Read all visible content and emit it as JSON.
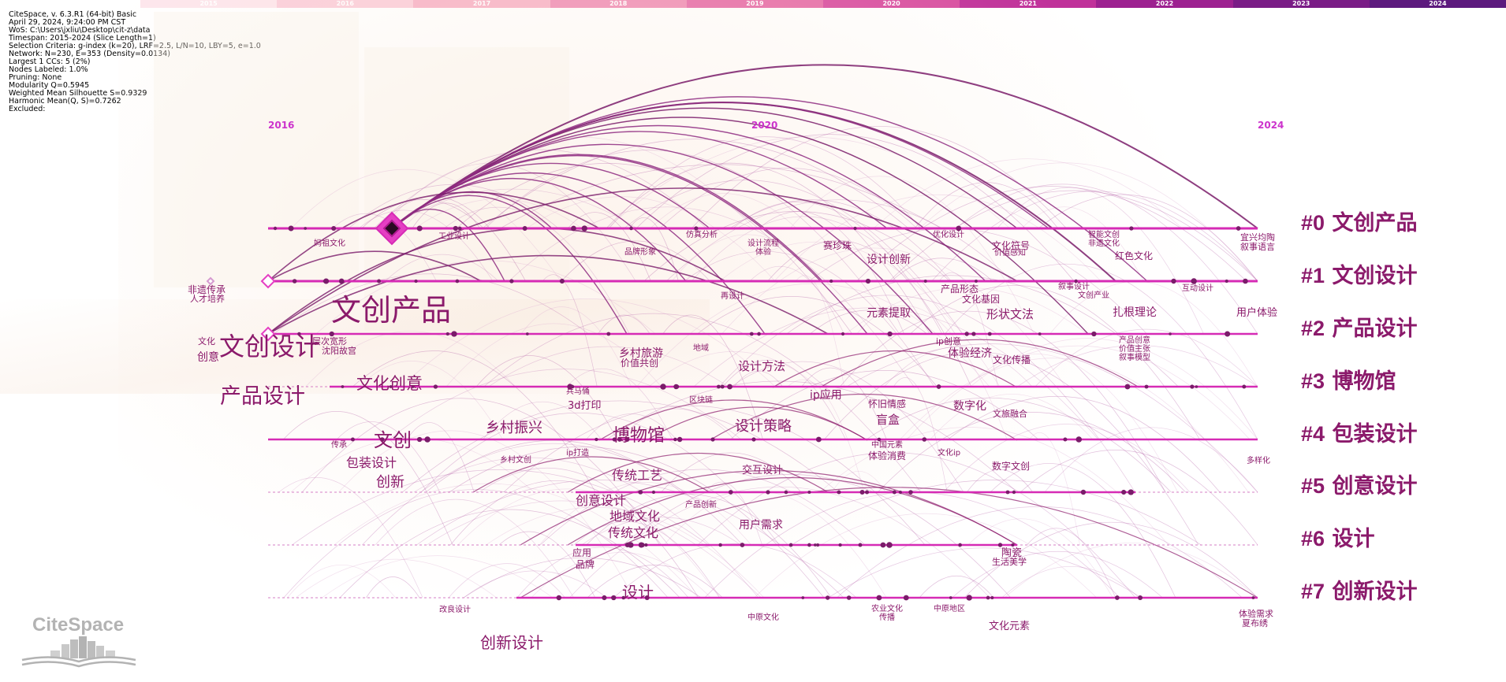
{
  "timebar": {
    "years": [
      "2015",
      "2016",
      "2017",
      "2018",
      "2019",
      "2020",
      "2021",
      "2022",
      "2023",
      "2024"
    ],
    "colors": [
      "#fde6ec",
      "#fbcfdb",
      "#f8b4c8",
      "#ef8fb6",
      "#e66da8",
      "#d84da0",
      "#c0319a",
      "#9d2190",
      "#7a1c86",
      "#5d1a7e"
    ]
  },
  "info": [
    "CiteSpace, v. 6.3.R1 (64-bit) Basic",
    "April 29, 2024, 9:24:00 PM CST",
    "WoS: C:\\Users\\jxliu\\Desktop\\cit-z\\data",
    "Timespan: 2015-2024 (Slice Length=1)",
    "Selection Criteria: g-index (k=20), LRF=2.5, L/N=10, LBY=5, e=1.0",
    "Network: N=230, E=353 (Density=0.0134)",
    "Largest 1 CCs: 5 (2%)",
    "Nodes Labeled: 1.0%",
    "Pruning: None",
    "Modularity Q=0.5945",
    "Weighted Mean Silhouette S=0.9329",
    "Harmonic Mean(Q, S)=0.7262",
    "Excluded:"
  ],
  "year_labels": [
    "2016",
    "2020",
    "2024"
  ],
  "clusters": [
    {
      "num": "#0",
      "name": "文创产品",
      "color": "#8b1a6b"
    },
    {
      "num": "#1",
      "name": "文创设计",
      "color": "#8b1a6b"
    },
    {
      "num": "#2",
      "name": "产品设计",
      "color": "#8b1a6b"
    },
    {
      "num": "#3",
      "name": "博物馆",
      "color": "#8b1a6b"
    },
    {
      "num": "#4",
      "name": "包装设计",
      "color": "#8b1a6b"
    },
    {
      "num": "#5",
      "name": "创意设计",
      "color": "#8b1a6b"
    },
    {
      "num": "#6",
      "name": "设计",
      "color": "#8b1a6b"
    },
    {
      "num": "#7",
      "name": "创新设计",
      "color": "#8b1a6b"
    }
  ],
  "keywords": [
    {
      "t": "文创产品",
      "sz": 38
    },
    {
      "t": "文创设计",
      "sz": 32
    },
    {
      "t": "产品设计",
      "sz": 27
    },
    {
      "t": "文化创意",
      "sz": 21
    },
    {
      "t": "文创",
      "sz": 24
    },
    {
      "t": "创新设计",
      "sz": 20
    },
    {
      "t": "博物馆",
      "sz": 22
    },
    {
      "t": "乡村振兴",
      "sz": 18
    },
    {
      "t": "设计策略",
      "sz": 18
    },
    {
      "t": "传统工艺",
      "sz": 16
    },
    {
      "t": "创意设计",
      "sz": 16
    },
    {
      "t": "地域文化",
      "sz": 16
    },
    {
      "t": "传统文化",
      "sz": 16
    },
    {
      "t": "设计",
      "sz": 20
    },
    {
      "t": "创新",
      "sz": 18
    },
    {
      "t": "包装设计",
      "sz": 16
    },
    {
      "t": "乡村旅游",
      "sz": 14
    },
    {
      "t": "价值共创",
      "sz": 12
    },
    {
      "t": "设计方法",
      "sz": 15
    },
    {
      "t": "ip应用",
      "sz": 14
    },
    {
      "t": "怀旧情感",
      "sz": 12
    },
    {
      "t": "盲盒",
      "sz": 15
    },
    {
      "t": "数字化",
      "sz": 14
    },
    {
      "t": "文旅融合",
      "sz": 11
    },
    {
      "t": "交互设计",
      "sz": 13
    },
    {
      "t": "用户需求",
      "sz": 14
    },
    {
      "t": "陶瓷",
      "sz": 13
    },
    {
      "t": "生活美学",
      "sz": 11
    },
    {
      "t": "应用",
      "sz": 12
    },
    {
      "t": "品牌",
      "sz": 12
    },
    {
      "t": "元素提取",
      "sz": 14
    },
    {
      "t": "形状文法",
      "sz": 15
    },
    {
      "t": "扎根理论",
      "sz": 14
    },
    {
      "t": "用户体验",
      "sz": 13
    },
    {
      "t": "设计创新",
      "sz": 14
    },
    {
      "t": "赛珍珠",
      "sz": 12
    },
    {
      "t": "文化符号",
      "sz": 12
    },
    {
      "t": "红色文化",
      "sz": 12
    },
    {
      "t": "宜兴均陶",
      "sz": 11
    },
    {
      "t": "叙事语言",
      "sz": 11
    },
    {
      "t": "非遗传承",
      "sz": 12
    },
    {
      "t": "人才培养",
      "sz": 11
    },
    {
      "t": "文化",
      "sz": 11
    },
    {
      "t": "创意",
      "sz": 14
    },
    {
      "t": "层次宽形",
      "sz": 11
    },
    {
      "t": "沈阳故宫",
      "sz": 11
    },
    {
      "t": "文化元素",
      "sz": 13
    },
    {
      "t": "体验需求",
      "sz": 11
    },
    {
      "t": "夏布绣",
      "sz": 11
    },
    {
      "t": "中原文化",
      "sz": 10
    },
    {
      "t": "中原地区",
      "sz": 10
    },
    {
      "t": "农业文化",
      "sz": 10
    },
    {
      "t": "传播",
      "sz": 10
    },
    {
      "t": "改良设计",
      "sz": 10
    },
    {
      "t": "3d打印",
      "sz": 13
    },
    {
      "t": "兵马俑",
      "sz": 10
    },
    {
      "t": "区块链",
      "sz": 10
    },
    {
      "t": "地域",
      "sz": 10
    },
    {
      "t": "ip打造",
      "sz": 10
    },
    {
      "t": "乡村文创",
      "sz": 10
    },
    {
      "t": "传承",
      "sz": 10
    },
    {
      "t": "中国元素",
      "sz": 10
    },
    {
      "t": "体验消费",
      "sz": 12
    },
    {
      "t": "文化ip",
      "sz": 10
    },
    {
      "t": "数字文创",
      "sz": 12
    },
    {
      "t": "多样化",
      "sz": 10
    },
    {
      "t": "产品创新",
      "sz": 10
    },
    {
      "t": "ip创意",
      "sz": 11
    },
    {
      "t": "体验经济",
      "sz": 14
    },
    {
      "t": "文化传播",
      "sz": 12
    },
    {
      "t": "产品形态",
      "sz": 12
    },
    {
      "t": "文化基因",
      "sz": 12
    },
    {
      "t": "再设计",
      "sz": 10
    },
    {
      "t": "叙事设计",
      "sz": 10
    },
    {
      "t": "文创产业",
      "sz": 10
    },
    {
      "t": "互动设计",
      "sz": 10
    },
    {
      "t": "产品创意",
      "sz": 10
    },
    {
      "t": "价值主张",
      "sz": 10
    },
    {
      "t": "叙事模型",
      "sz": 10
    },
    {
      "t": "智能文创",
      "sz": 10
    },
    {
      "t": "非遗文化",
      "sz": 10
    },
    {
      "t": "优化设计",
      "sz": 10
    },
    {
      "t": "仿真分析",
      "sz": 10
    },
    {
      "t": "设计流程",
      "sz": 10
    },
    {
      "t": "体验",
      "sz": 10
    },
    {
      "t": "品牌形象",
      "sz": 10
    },
    {
      "t": "工业设计",
      "sz": 10
    },
    {
      "t": "妈祖文化",
      "sz": 10
    },
    {
      "t": "价值感知",
      "sz": 10
    }
  ],
  "logo": {
    "text": "CiteSpace"
  }
}
